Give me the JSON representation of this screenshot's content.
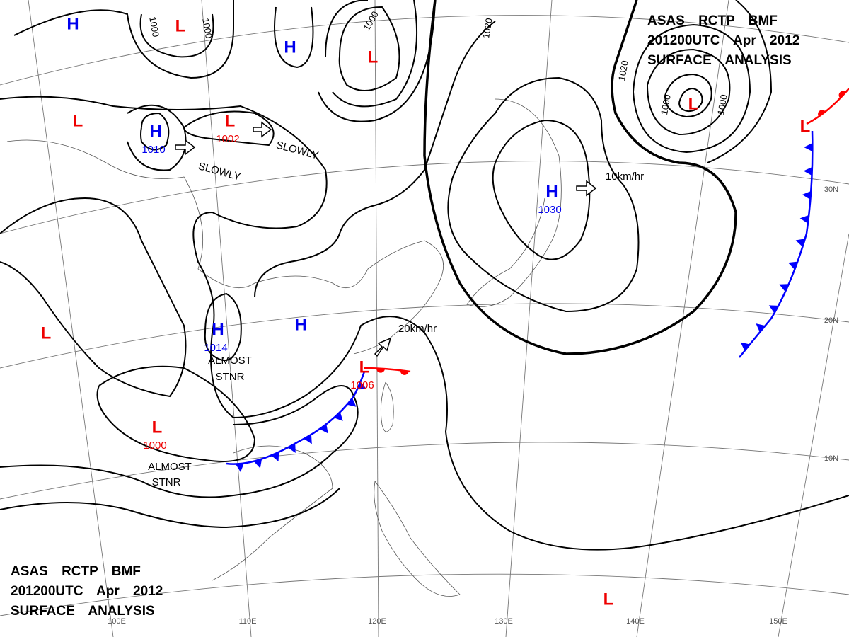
{
  "header_top": {
    "lines": [
      "ASAS RCTP BMF",
      "201200UTC Apr 2012",
      "SURFACE ANALYSIS"
    ]
  },
  "header_bottom": {
    "lines": [
      "ASAS RCTP BMF",
      "201200UTC Apr 2012",
      "SURFACE ANALYSIS"
    ]
  },
  "centers": [
    {
      "symbol": "H"
    },
    {
      "symbol": "L"
    },
    {
      "symbol": "H"
    },
    {
      "symbol": "L"
    },
    {
      "symbol": "L"
    },
    {
      "symbol": "H",
      "pressure": 1010
    },
    {
      "symbol": "L",
      "pressure": 1002
    },
    {
      "symbol": "H",
      "pressure": 1030
    },
    {
      "symbol": "L"
    },
    {
      "symbol": "L"
    },
    {
      "symbol": "H",
      "pressure": 1014
    },
    {
      "symbol": "H"
    },
    {
      "symbol": "L",
      "pressure": 1000
    },
    {
      "symbol": "L"
    },
    {
      "symbol": "L",
      "pressure": 1006
    },
    {
      "symbol": "L"
    }
  ],
  "isobar_labels": [
    1000,
    1000,
    1000,
    1020,
    1020,
    1000,
    1000
  ],
  "motions": [
    "SLOWLY",
    "SLOWLY",
    "10km/hr",
    "20km/hr",
    "ALMOST",
    "STNR",
    "ALMOST",
    "STNR"
  ],
  "longitude_labels": [
    "100E",
    "110E",
    "120E",
    "130E",
    "140E",
    "150E"
  ],
  "latitude_labels": [
    "30N",
    "20N",
    "10N"
  ]
}
